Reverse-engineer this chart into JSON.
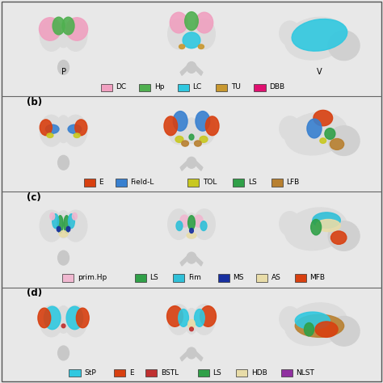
{
  "fig_bg": "#e8e8e8",
  "panel_bg": "#ffffff",
  "brain_color": "#dcdcdc",
  "brain_shadow": "#c8c8c8",
  "border_color": "#555555",
  "rows": [
    {
      "label": null,
      "view_labels": [
        "P",
        null,
        "V"
      ],
      "legend": [
        {
          "color": "#f0a0c0",
          "name": "DC"
        },
        {
          "color": "#50b050",
          "name": "Hp"
        },
        {
          "color": "#30c8e0",
          "name": "LC"
        },
        {
          "color": "#c89830",
          "name": "TU"
        },
        {
          "color": "#e01070",
          "name": "DBB"
        }
      ]
    },
    {
      "label": "(b)",
      "view_labels": [
        null,
        null,
        null
      ],
      "legend": [
        {
          "color": "#d84010",
          "name": "E"
        },
        {
          "color": "#3880d0",
          "name": "Field-L"
        },
        {
          "color": "#c8c820",
          "name": "TOL"
        },
        {
          "color": "#30a048",
          "name": "LS"
        },
        {
          "color": "#b88030",
          "name": "LFB"
        }
      ]
    },
    {
      "label": "(c)",
      "view_labels": [
        null,
        null,
        null
      ],
      "legend": [
        {
          "color": "#f0b8d0",
          "name": "prim.Hp"
        },
        {
          "color": "#30a048",
          "name": "LS"
        },
        {
          "color": "#30c0d8",
          "name": "Fim"
        },
        {
          "color": "#1830a0",
          "name": "MS"
        },
        {
          "color": "#e8dca8",
          "name": "AS"
        },
        {
          "color": "#d84010",
          "name": "MFB"
        }
      ]
    },
    {
      "label": "(d)",
      "view_labels": [
        null,
        null,
        null
      ],
      "legend": [
        {
          "color": "#30c8e0",
          "name": "StP"
        },
        {
          "color": "#d84010",
          "name": "E"
        },
        {
          "color": "#c03030",
          "name": "BSTL"
        },
        {
          "color": "#30a048",
          "name": "LS"
        },
        {
          "color": "#e8dca8",
          "name": "HDB"
        },
        {
          "color": "#9030a0",
          "name": "NLST"
        }
      ]
    }
  ],
  "legend_fontsize": 6.5,
  "label_fontsize": 8.5
}
